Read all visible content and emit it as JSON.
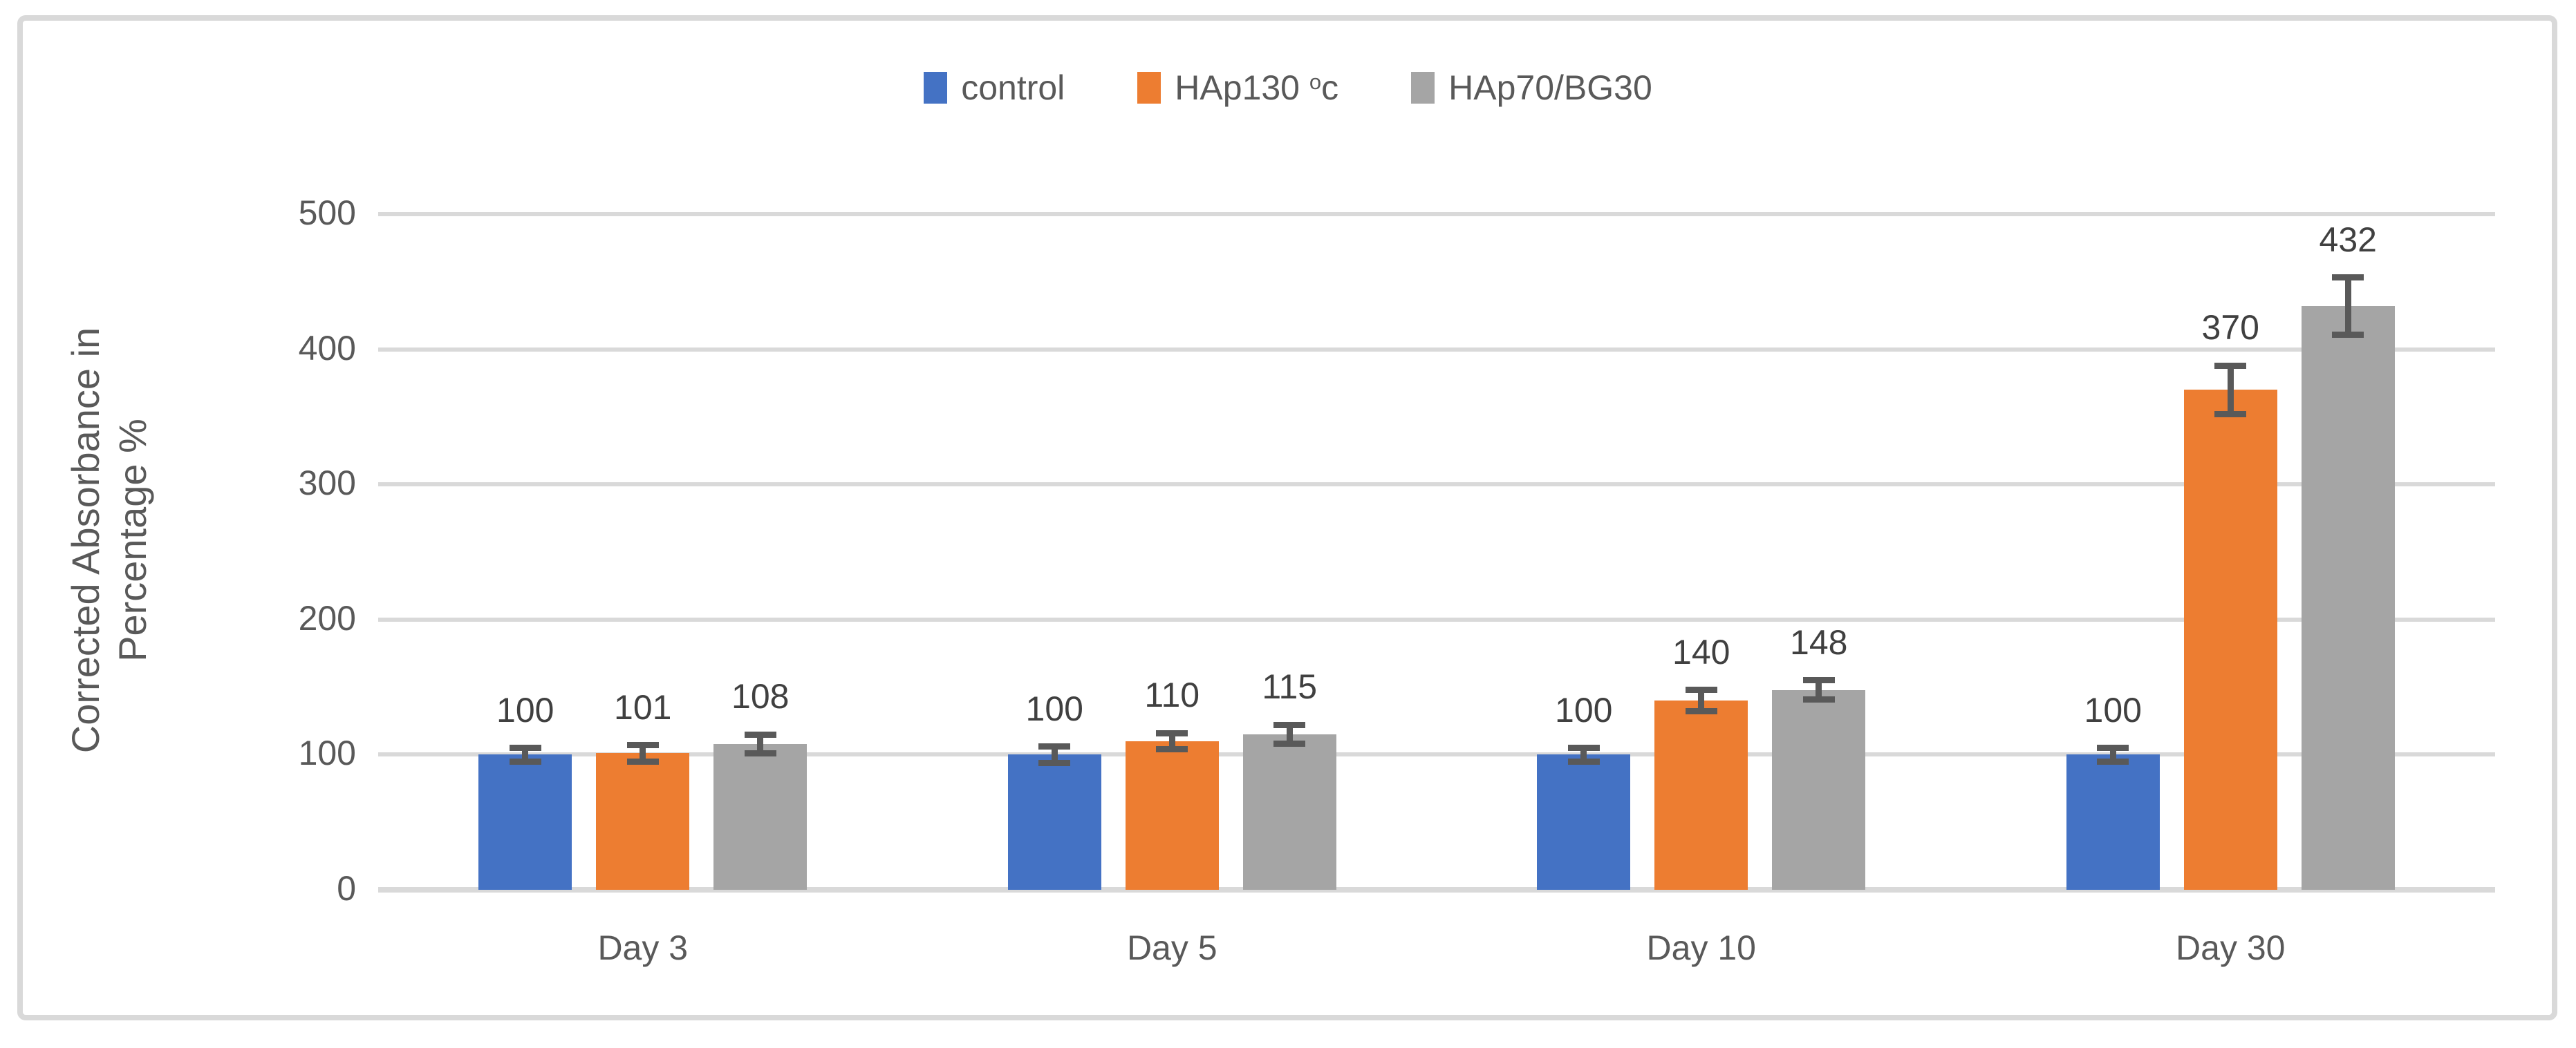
{
  "figure": {
    "frame_color": "#D9D9D9",
    "background": "#FFFFFF"
  },
  "chart_data": {
    "type": "bar",
    "title": "",
    "categories": [
      "Day 3",
      "Day 5",
      "Day 10",
      "Day 30"
    ],
    "series": [
      {
        "name": "control",
        "color": "#4472C4",
        "label_parts": [
          {
            "t": "control"
          }
        ],
        "values": [
          100,
          100,
          100,
          100
        ],
        "errors": [
          5,
          6,
          5,
          5
        ]
      },
      {
        "name": "HAp130 °c",
        "color": "#ED7D31",
        "label_parts": [
          {
            "t": "HAp130 "
          },
          {
            "t": "o",
            "sup": true
          },
          {
            "t": "c"
          }
        ],
        "values": [
          101,
          110,
          140,
          370
        ],
        "errors": [
          6,
          6,
          8,
          18
        ]
      },
      {
        "name": "HAp70/BG30",
        "color": "#A5A5A5",
        "label_parts": [
          {
            "t": "HAp70/BG30"
          }
        ],
        "values": [
          108,
          115,
          148,
          432
        ],
        "errors": [
          7,
          7,
          7,
          21
        ]
      }
    ],
    "data_labels_shown": true,
    "ylabel_lines": [
      "Corrected Absorbance in",
      "Percentage %"
    ],
    "xlabel": "",
    "yticks": [
      0,
      100,
      200,
      300,
      400,
      500
    ],
    "ylim": [
      0,
      500
    ],
    "grid": true,
    "legend_position": "top",
    "colors": {
      "gridline": "#D9D9D9",
      "axis_line": "#D9D9D9",
      "error_bar": "#595959",
      "axis_text": "#595959",
      "data_label_text": "#404040"
    }
  }
}
